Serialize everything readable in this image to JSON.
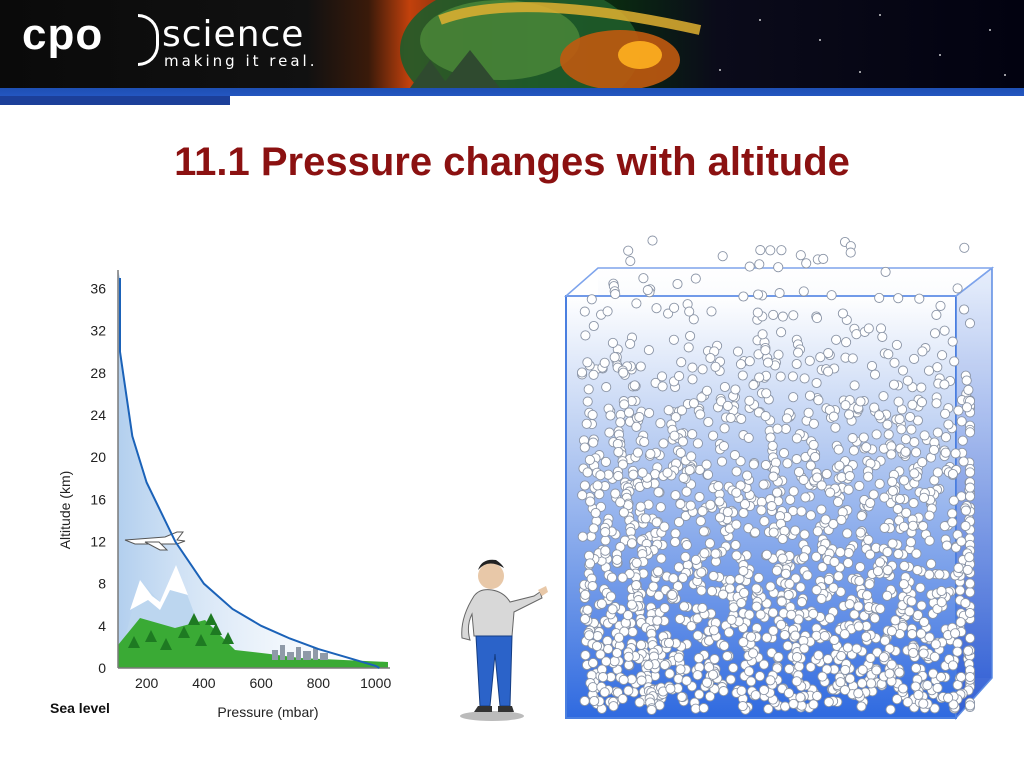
{
  "header": {
    "logo_main": "cpo",
    "logo_brand": "science",
    "logo_tagline": "making it real."
  },
  "slide": {
    "title": "11.1 Pressure changes with altitude"
  },
  "diagram": {
    "sea_level_label": "Sea level"
  },
  "colors": {
    "title": "#8b1111",
    "curve": "#1b62b8",
    "ground": "#3aaa35",
    "tank_blue": "#2563eb"
  },
  "chart_data": {
    "type": "line",
    "title": "",
    "xlabel": "Pressure (mbar)",
    "ylabel": "Altitude (km)",
    "xlim": [
      100,
      1050
    ],
    "ylim": [
      0,
      37
    ],
    "x_ticks": [
      200,
      400,
      600,
      800,
      1000
    ],
    "y_ticks": [
      0,
      4,
      8,
      12,
      16,
      20,
      24,
      28,
      32,
      36
    ],
    "grid": false,
    "series": [
      {
        "x": [
          50,
          100,
          150,
          200,
          300,
          400,
          500,
          600,
          700,
          800,
          900,
          1000,
          1013
        ],
        "y": [
          37,
          30,
          22,
          17.6,
          12.0,
          8.0,
          5.6,
          4.0,
          2.8,
          1.8,
          1.0,
          0.2,
          0.0
        ]
      }
    ]
  }
}
